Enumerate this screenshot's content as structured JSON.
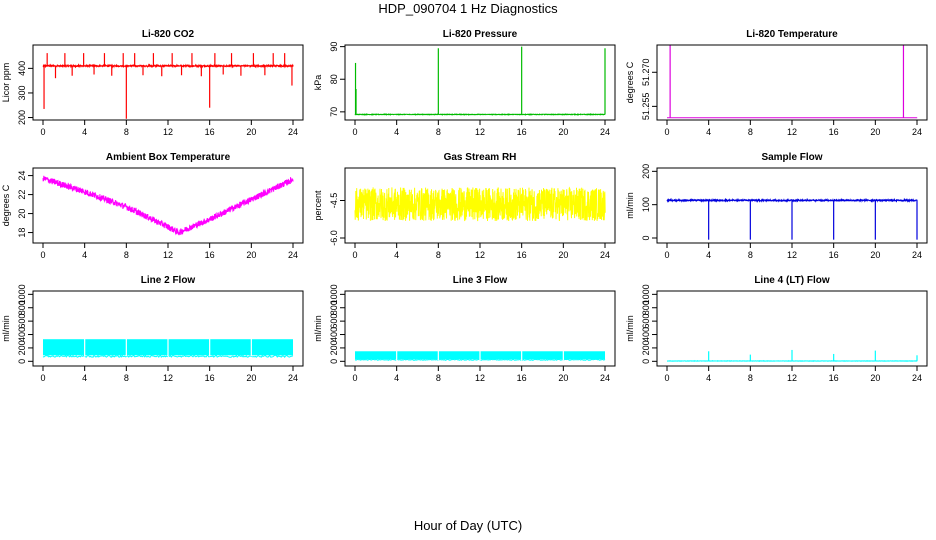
{
  "figure": {
    "title": "HDP_090704  1 Hz Diagnostics",
    "footer": "Hour of Day (UTC)"
  },
  "chart_data": [
    {
      "type": "line",
      "title": "Li-820 CO2",
      "ylabel": "Licor ppm",
      "color": "#ff0000",
      "xlim": [
        0,
        24
      ],
      "ylim": [
        190,
        495
      ],
      "xticks": [
        "0",
        "4",
        "8",
        "12",
        "16",
        "20",
        "24"
      ],
      "yticks": [
        200,
        300,
        400
      ],
      "ytick_labels": [
        "200",
        "300",
        "400"
      ],
      "baseline": 410,
      "noise": 6,
      "spikes": [
        {
          "x": 0.1,
          "y": 235
        },
        {
          "x": 0.4,
          "y": 462
        },
        {
          "x": 1.2,
          "y": 360
        },
        {
          "x": 2.1,
          "y": 462
        },
        {
          "x": 2.8,
          "y": 370
        },
        {
          "x": 3.9,
          "y": 462
        },
        {
          "x": 4.9,
          "y": 375
        },
        {
          "x": 5.9,
          "y": 462
        },
        {
          "x": 6.6,
          "y": 370
        },
        {
          "x": 7.7,
          "y": 462
        },
        {
          "x": 8.0,
          "y": 195
        },
        {
          "x": 8.8,
          "y": 462
        },
        {
          "x": 9.6,
          "y": 372
        },
        {
          "x": 10.6,
          "y": 462
        },
        {
          "x": 11.4,
          "y": 368
        },
        {
          "x": 12.4,
          "y": 462
        },
        {
          "x": 13.3,
          "y": 372
        },
        {
          "x": 14.3,
          "y": 462
        },
        {
          "x": 15.2,
          "y": 368
        },
        {
          "x": 16.0,
          "y": 240
        },
        {
          "x": 16.5,
          "y": 462
        },
        {
          "x": 17.3,
          "y": 375
        },
        {
          "x": 18.1,
          "y": 462
        },
        {
          "x": 19.0,
          "y": 370
        },
        {
          "x": 20.2,
          "y": 462
        },
        {
          "x": 21.3,
          "y": 372
        },
        {
          "x": 22.1,
          "y": 462
        },
        {
          "x": 23.2,
          "y": 462
        },
        {
          "x": 23.9,
          "y": 330
        }
      ]
    },
    {
      "type": "line",
      "title": "Li-820 Pressure",
      "ylabel": "kPa",
      "color": "#00bb00",
      "xlim": [
        0,
        24
      ],
      "ylim": [
        67.5,
        90.5
      ],
      "xticks": [
        "0",
        "4",
        "8",
        "12",
        "16",
        "20",
        "24"
      ],
      "yticks": [
        70,
        80,
        90
      ],
      "ytick_labels": [
        "70",
        "80",
        "90"
      ],
      "baseline": 69.2,
      "noise": 0.15,
      "spikes": [
        {
          "x": 0.05,
          "y": 85
        },
        {
          "x": 0.1,
          "y": 77
        },
        {
          "x": 8.0,
          "y": 89.5
        },
        {
          "x": 16.0,
          "y": 90
        },
        {
          "x": 24.0,
          "y": 89.5
        }
      ]
    },
    {
      "type": "line",
      "title": "Li-820 Temperature",
      "ylabel": "degrees C",
      "color": "#dd00dd",
      "xlim": [
        0,
        24
      ],
      "ylim": [
        51.249,
        51.282
      ],
      "xticks": [
        "0",
        "4",
        "8",
        "12",
        "16",
        "20",
        "24"
      ],
      "yticks": [
        51.255,
        51.27
      ],
      "ytick_labels": [
        "51.255",
        "51.270"
      ],
      "baseline": 51.25,
      "noise": 0,
      "spikes": [
        {
          "x": 0.3,
          "y": 51.282
        },
        {
          "x": 22.7,
          "y": 51.282
        }
      ]
    },
    {
      "type": "line",
      "title": "Ambient Box Temperature",
      "ylabel": "degrees C",
      "color": "#ff00ff",
      "xlim": [
        0,
        24
      ],
      "ylim": [
        16.9,
        24.8
      ],
      "xticks": [
        "0",
        "4",
        "8",
        "12",
        "16",
        "20",
        "24"
      ],
      "yticks": [
        18,
        20,
        22,
        24
      ],
      "ytick_labels": [
        "18",
        "20",
        "22",
        "24"
      ],
      "trend_x": [
        0,
        4,
        8,
        12,
        13,
        16,
        20,
        24
      ],
      "trend_y": [
        23.7,
        22.3,
        20.7,
        18.6,
        18.0,
        19.4,
        21.5,
        23.6
      ],
      "noise": 0.65,
      "spikes": []
    },
    {
      "type": "line",
      "title": "Gas Stream RH",
      "ylabel": "percent",
      "color": "#ffff00",
      "xlim": [
        0,
        24
      ],
      "ylim": [
        -6.2,
        -3.2
      ],
      "xticks": [
        "0",
        "4",
        "8",
        "12",
        "16",
        "20",
        "24"
      ],
      "yticks": [
        -6.0,
        -4.5
      ],
      "ytick_labels": [
        "-6.0",
        "-4.5"
      ],
      "baseline": -4.65,
      "noise": 1.35,
      "spikes": []
    },
    {
      "type": "line",
      "title": "Sample Flow",
      "ylabel": "ml/min",
      "color": "#0000dd",
      "xlim": [
        0,
        24
      ],
      "ylim": [
        -15,
        210
      ],
      "xticks": [
        "0",
        "4",
        "8",
        "12",
        "16",
        "20",
        "24"
      ],
      "yticks": [
        0,
        100,
        200
      ],
      "ytick_labels": [
        "0",
        "100",
        "200"
      ],
      "baseline": 113,
      "noise": 4,
      "spikes": [
        {
          "x": 4.0,
          "y": -5
        },
        {
          "x": 8.0,
          "y": -5
        },
        {
          "x": 12.0,
          "y": -5
        },
        {
          "x": 16.0,
          "y": -5
        },
        {
          "x": 20.0,
          "y": -5
        },
        {
          "x": 24.0,
          "y": -5
        }
      ]
    },
    {
      "type": "area",
      "title": "Line 2 Flow",
      "ylabel": "ml/min",
      "color": "#00ffff",
      "xlim": [
        0,
        24
      ],
      "ylim": [
        -70,
        1050
      ],
      "xticks": [
        "0",
        "4",
        "8",
        "12",
        "16",
        "20",
        "24"
      ],
      "yticks": [
        0,
        200,
        400,
        600,
        800,
        1000
      ],
      "ytick_labels": [
        "0",
        "200",
        "400",
        "600",
        "800",
        "1000"
      ],
      "band": [
        90,
        330
      ],
      "gaps": [
        4.0,
        8.0,
        12.0,
        16.0,
        20.0
      ]
    },
    {
      "type": "area",
      "title": "Line 3 Flow",
      "ylabel": "ml/min",
      "color": "#00ffff",
      "xlim": [
        0,
        24
      ],
      "ylim": [
        -70,
        1050
      ],
      "xticks": [
        "0",
        "4",
        "8",
        "12",
        "16",
        "20",
        "24"
      ],
      "yticks": [
        0,
        200,
        400,
        600,
        800,
        1000
      ],
      "ytick_labels": [
        "0",
        "200",
        "400",
        "600",
        "800",
        "1000"
      ],
      "band": [
        30,
        150
      ],
      "gaps": [
        4.0,
        8.0,
        12.0,
        16.0,
        20.0
      ]
    },
    {
      "type": "line",
      "title": "Line 4 (LT) Flow",
      "ylabel": "ml/min",
      "color": "#00ffff",
      "xlim": [
        0,
        24
      ],
      "ylim": [
        -70,
        1050
      ],
      "xticks": [
        "0",
        "4",
        "8",
        "12",
        "16",
        "20",
        "24"
      ],
      "yticks": [
        0,
        200,
        400,
        600,
        800,
        1000
      ],
      "ytick_labels": [
        "0",
        "200",
        "400",
        "600",
        "800",
        "1000"
      ],
      "baseline": 5,
      "noise": 4,
      "spikes": [
        {
          "x": 4.0,
          "y": 150
        },
        {
          "x": 8.0,
          "y": 100
        },
        {
          "x": 12.0,
          "y": 170
        },
        {
          "x": 16.0,
          "y": 110
        },
        {
          "x": 20.0,
          "y": 160
        },
        {
          "x": 24.0,
          "y": 90
        }
      ]
    }
  ]
}
